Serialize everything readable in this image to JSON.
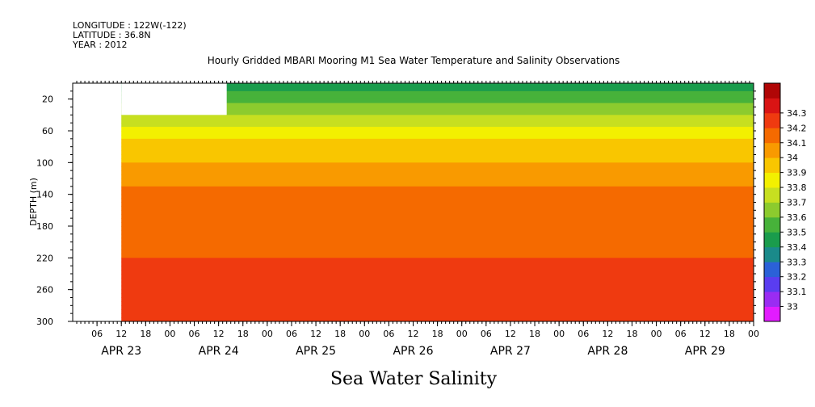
{
  "header": {
    "longitude": "LONGITUDE : 122W(-122)",
    "latitude": "LATITUDE : 36.8N",
    "year": "YEAR : 2012",
    "title": "Hourly Gridded MBARI Mooring M1 Sea Water Temperature and Salinity Observations"
  },
  "caption": "Sea Water Salinity",
  "chart_data": {
    "type": "heatmap",
    "title": "Hourly Gridded MBARI Mooring M1 Sea Water Temperature and Salinity Observations",
    "xlabel": "",
    "ylabel": "DEPTH (m)",
    "x_range_hours": [
      0,
      168
    ],
    "ylim": [
      300,
      0
    ],
    "y_ticks": [
      20,
      60,
      100,
      140,
      180,
      220,
      260,
      300
    ],
    "x_hour_ticks": [
      {
        "h": 6,
        "label": "06"
      },
      {
        "h": 12,
        "label": "12"
      },
      {
        "h": 18,
        "label": "18"
      },
      {
        "h": 24,
        "label": "00"
      },
      {
        "h": 30,
        "label": "06"
      },
      {
        "h": 36,
        "label": "12"
      },
      {
        "h": 42,
        "label": "18"
      },
      {
        "h": 48,
        "label": "00"
      },
      {
        "h": 54,
        "label": "06"
      },
      {
        "h": 60,
        "label": "12"
      },
      {
        "h": 66,
        "label": "18"
      },
      {
        "h": 72,
        "label": "00"
      },
      {
        "h": 78,
        "label": "06"
      },
      {
        "h": 84,
        "label": "12"
      },
      {
        "h": 90,
        "label": "18"
      },
      {
        "h": 96,
        "label": "00"
      },
      {
        "h": 102,
        "label": "06"
      },
      {
        "h": 108,
        "label": "12"
      },
      {
        "h": 114,
        "label": "18"
      },
      {
        "h": 120,
        "label": "00"
      },
      {
        "h": 126,
        "label": "06"
      },
      {
        "h": 132,
        "label": "12"
      },
      {
        "h": 138,
        "label": "18"
      },
      {
        "h": 144,
        "label": "00"
      },
      {
        "h": 150,
        "label": "06"
      },
      {
        "h": 156,
        "label": "12"
      },
      {
        "h": 162,
        "label": "18"
      },
      {
        "h": 168,
        "label": "00"
      }
    ],
    "date_labels": [
      {
        "h": 12,
        "label": "APR 23"
      },
      {
        "h": 36,
        "label": "APR 24"
      },
      {
        "h": 60,
        "label": "APR 25"
      },
      {
        "h": 84,
        "label": "APR 26"
      },
      {
        "h": 108,
        "label": "APR 27"
      },
      {
        "h": 132,
        "label": "APR 28"
      },
      {
        "h": 156,
        "label": "APR 29"
      }
    ],
    "colorbar": {
      "levels": [
        33,
        33.1,
        33.2,
        33.3,
        33.4,
        33.5,
        33.6,
        33.7,
        33.8,
        33.9,
        34,
        34.1,
        34.2,
        34.3
      ],
      "labels": [
        "33",
        "33.1",
        "33.2",
        "33.3",
        "33.4",
        "33.5",
        "33.6",
        "33.7",
        "33.8",
        "33.9",
        "34",
        "34.1",
        "34.2",
        "34.3"
      ],
      "colors": [
        "#e21cff",
        "#9a2cf2",
        "#5a3df0",
        "#2b61d8",
        "#1a8a8a",
        "#1a9c4c",
        "#47b23a",
        "#8ccb2e",
        "#c7df20",
        "#f3f000",
        "#f9c600",
        "#f99a00",
        "#f56a00",
        "#ef3a10",
        "#d91414",
        "#b00606"
      ]
    },
    "salinity_profile_by_depth": [
      {
        "depth": 20,
        "value": 33.55
      },
      {
        "depth": 40,
        "value": 33.7
      },
      {
        "depth": 60,
        "value": 33.85
      },
      {
        "depth": 80,
        "value": 33.95
      },
      {
        "depth": 100,
        "value": 34.0
      },
      {
        "depth": 120,
        "value": 34.08
      },
      {
        "depth": 140,
        "value": 34.12
      },
      {
        "depth": 180,
        "value": 34.15
      },
      {
        "depth": 220,
        "value": 34.2
      },
      {
        "depth": 260,
        "value": 34.28
      },
      {
        "depth": 300,
        "value": 34.3
      }
    ],
    "data_start_hour": 12
  }
}
